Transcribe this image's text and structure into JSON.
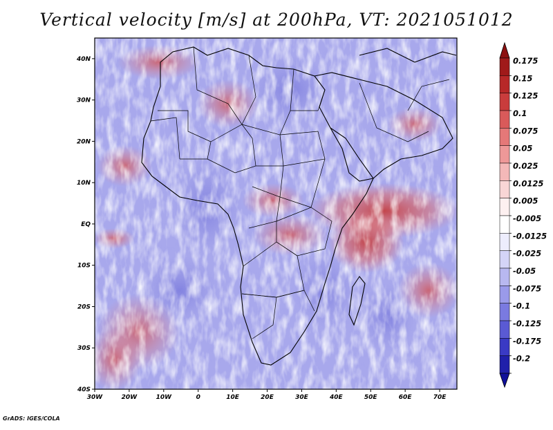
{
  "title": "Vertical velocity [m/s] at 200hPa, VT: 2021051012",
  "credit": "GrADS: IGES/COLA",
  "map": {
    "lat_labels": [
      {
        "lat": 40,
        "label": "40N"
      },
      {
        "lat": 30,
        "label": "30N"
      },
      {
        "lat": 20,
        "label": "20N"
      },
      {
        "lat": 10,
        "label": "10N"
      },
      {
        "lat": 0,
        "label": "EQ"
      },
      {
        "lat": -10,
        "label": "10S"
      },
      {
        "lat": -20,
        "label": "20S"
      },
      {
        "lat": -30,
        "label": "30S"
      },
      {
        "lat": -40,
        "label": "40S"
      }
    ],
    "lon_labels": [
      {
        "lon": -30,
        "label": "30W"
      },
      {
        "lon": -20,
        "label": "20W"
      },
      {
        "lon": -10,
        "label": "10W"
      },
      {
        "lon": 0,
        "label": "0"
      },
      {
        "lon": 10,
        "label": "10E"
      },
      {
        "lon": 20,
        "label": "20E"
      },
      {
        "lon": 30,
        "label": "30E"
      },
      {
        "lon": 40,
        "label": "40E"
      },
      {
        "lon": 50,
        "label": "50E"
      },
      {
        "lon": 60,
        "label": "60E"
      },
      {
        "lon": 70,
        "label": "70E"
      }
    ],
    "lon_range": [
      -30,
      75
    ],
    "lat_range": [
      -40,
      45
    ]
  },
  "colorbar": {
    "levels": [
      {
        "label": "0.175",
        "color": "#a01a1a"
      },
      {
        "label": "0.15",
        "color": "#b72828"
      },
      {
        "label": "0.125",
        "color": "#c93c3c"
      },
      {
        "label": "0.1",
        "color": "#d95a5a"
      },
      {
        "label": "0.075",
        "color": "#e57878"
      },
      {
        "label": "0.05",
        "color": "#ee9898"
      },
      {
        "label": "0.025",
        "color": "#f4b8b8"
      },
      {
        "label": "0.0125",
        "color": "#f9d6d6"
      },
      {
        "label": "0.005",
        "color": "#fdf0f0"
      },
      {
        "label": "-0.005",
        "color": "#ffffff"
      },
      {
        "label": "-0.0125",
        "color": "#ededfd"
      },
      {
        "label": "-0.025",
        "color": "#d4d4f7"
      },
      {
        "label": "-0.05",
        "color": "#b8b8f0"
      },
      {
        "label": "-0.075",
        "color": "#9a9aea"
      },
      {
        "label": "-0.1",
        "color": "#7a7ae0"
      },
      {
        "label": "-0.125",
        "color": "#5a5ad4"
      },
      {
        "label": "-0.175",
        "color": "#3a3ac4"
      },
      {
        "label": "-0.2",
        "color": "#2020aa"
      }
    ],
    "top_color": "#8c1010",
    "bottom_color": "#10109a"
  }
}
